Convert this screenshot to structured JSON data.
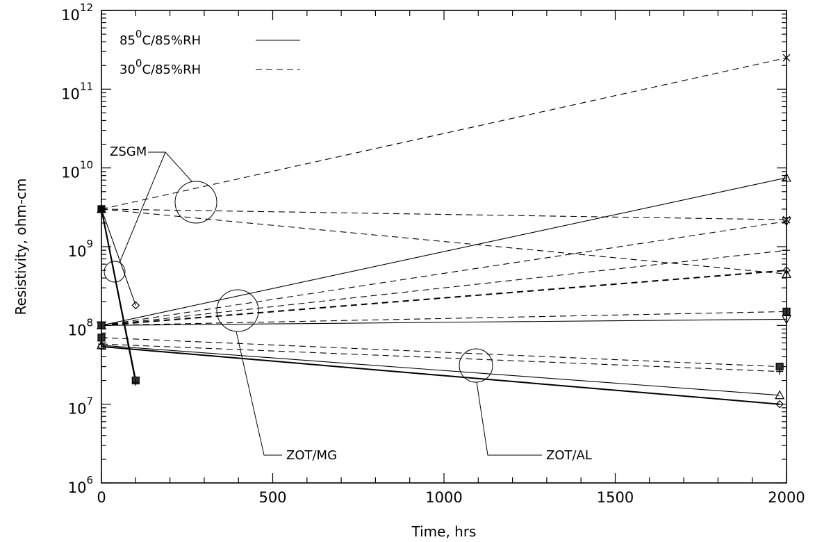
{
  "chart_data": {
    "type": "line",
    "title": "",
    "xlabel": "Time, hrs",
    "ylabel": "Resistivity, ohm-cm",
    "xlim": [
      0,
      2000
    ],
    "ylim_log10": [
      6,
      12
    ],
    "y_scale": "log",
    "grid": false,
    "x_ticks": [
      0,
      500,
      1000,
      1500,
      2000
    ],
    "y_ticks": [
      {
        "base": "10",
        "exp": "6"
      },
      {
        "base": "10",
        "exp": "7"
      },
      {
        "base": "10",
        "exp": "8"
      },
      {
        "base": "10",
        "exp": "9"
      },
      {
        "base": "10",
        "exp": "10"
      },
      {
        "base": "10",
        "exp": "11"
      },
      {
        "base": "10",
        "exp": "12"
      }
    ],
    "legend": {
      "placement": "top-left",
      "items": [
        {
          "pre": "85",
          "sup": "0",
          "post": "C/85%RH",
          "style": "solid"
        },
        {
          "pre": "30",
          "sup": "0",
          "post": "C/85%RH",
          "style": "dashed"
        }
      ]
    },
    "annotations": [
      {
        "text": "ZSGM"
      },
      {
        "text": "ZOT/MG"
      },
      {
        "text": "ZOT/AL"
      }
    ],
    "series": [
      {
        "group": "ZSGM",
        "condition": "85C",
        "style": "solid-bold",
        "marker": "square",
        "points": [
          [
            0,
            3000000000.0
          ],
          [
            100,
            20000000.0
          ]
        ]
      },
      {
        "group": "ZSGM",
        "condition": "85C",
        "style": "solid-bold",
        "marker": "plus",
        "points": [
          [
            0,
            3000000000.0
          ],
          [
            100,
            19000000.0
          ]
        ]
      },
      {
        "group": "ZSGM",
        "condition": "85C",
        "style": "solid",
        "marker": "diamond",
        "points": [
          [
            0,
            3000000000.0
          ],
          [
            100,
            180000000.0
          ]
        ]
      },
      {
        "group": "ZSGM",
        "condition": "30C",
        "style": "dashed",
        "marker": "x",
        "points": [
          [
            0,
            3000000000.0
          ],
          [
            2000,
            250000000000.0
          ]
        ]
      },
      {
        "group": "ZSGM",
        "condition": "30C",
        "style": "dashed",
        "marker": "x",
        "points": [
          [
            0,
            3000000000.0
          ],
          [
            2000,
            2200000000.0
          ]
        ]
      },
      {
        "group": "ZSGM",
        "condition": "30C",
        "style": "dashed",
        "marker": "triangle-up",
        "points": [
          [
            0,
            3000000000.0
          ],
          [
            2000,
            450000000.0
          ]
        ]
      },
      {
        "group": "ZOT/MG",
        "condition": "85C",
        "style": "solid",
        "marker": "triangle-up",
        "points": [
          [
            0,
            100000000.0
          ],
          [
            2000,
            7500000000.0
          ]
        ]
      },
      {
        "group": "ZOT/MG",
        "condition": "85C",
        "style": "solid",
        "marker": "triangle-down",
        "points": [
          [
            0,
            100000000.0
          ],
          [
            2000,
            120000000.0
          ]
        ]
      },
      {
        "group": "ZOT/MG",
        "condition": "30C",
        "style": "dashed",
        "marker": "triangle-down",
        "points": [
          [
            0,
            100000000.0
          ],
          [
            2000,
            2100000000.0
          ]
        ]
      },
      {
        "group": "ZOT/MG",
        "condition": "30C",
        "style": "dashed",
        "marker": "plus",
        "points": [
          [
            0,
            100000000.0
          ],
          [
            2000,
            900000000.0
          ]
        ]
      },
      {
        "group": "ZOT/MG",
        "condition": "30C",
        "style": "dashed-bold",
        "marker": "diamond",
        "points": [
          [
            0,
            100000000.0
          ],
          [
            2000,
            500000000.0
          ]
        ]
      },
      {
        "group": "ZOT/MG",
        "condition": "30C",
        "style": "dashed",
        "marker": "square",
        "points": [
          [
            0,
            100000000.0
          ],
          [
            2000,
            150000000.0
          ]
        ]
      },
      {
        "group": "ZOT/AL",
        "condition": "30C",
        "style": "dashed",
        "marker": "square",
        "points": [
          [
            0,
            70000000.0
          ],
          [
            1980,
            30000000.0
          ]
        ]
      },
      {
        "group": "ZOT/AL",
        "condition": "30C",
        "style": "dashed",
        "marker": "plus",
        "points": [
          [
            0,
            58000000.0
          ],
          [
            1980,
            26000000.0
          ]
        ]
      },
      {
        "group": "ZOT/AL",
        "condition": "85C",
        "style": "solid",
        "marker": "triangle-up",
        "points": [
          [
            0,
            56000000.0
          ],
          [
            1980,
            13000000.0
          ]
        ]
      },
      {
        "group": "ZOT/AL",
        "condition": "85C",
        "style": "solid-bold",
        "marker": "diamond",
        "points": [
          [
            0,
            54000000.0
          ],
          [
            1980,
            10000000.0
          ]
        ]
      }
    ]
  }
}
